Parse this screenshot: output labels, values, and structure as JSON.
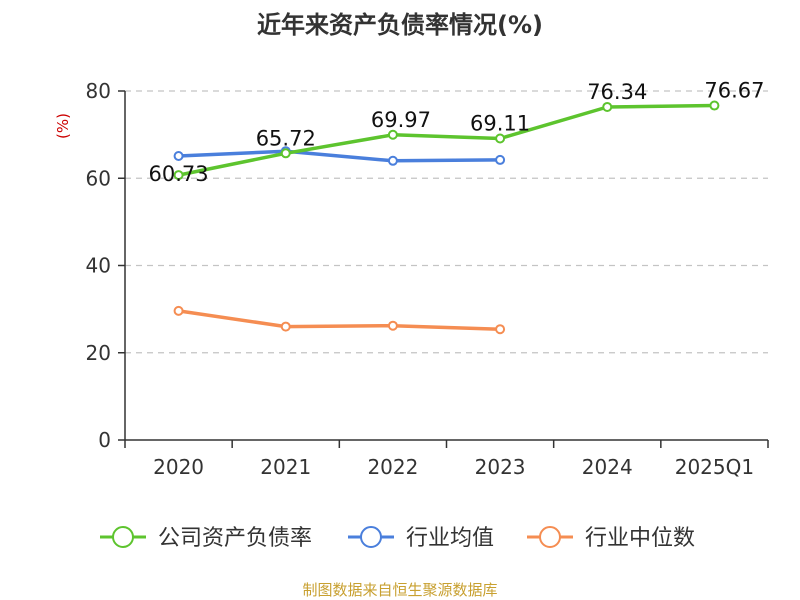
{
  "chart_data": {
    "type": "line",
    "title": "近年来资产负债率情况(%)",
    "ylabel": "(%)",
    "xlabel": "",
    "categories": [
      "2020",
      "2021",
      "2022",
      "2023",
      "2024",
      "2025Q1"
    ],
    "ylim": [
      0,
      80
    ],
    "yticks": [
      0,
      20,
      40,
      60,
      80
    ],
    "grid": true,
    "legend_position": "bottom",
    "series": [
      {
        "name": "公司资产负债率",
        "color": "#5dc42e",
        "values": [
          60.73,
          65.72,
          69.97,
          69.11,
          76.34,
          76.67
        ],
        "labels": [
          "60.73",
          "65.72",
          "69.97",
          "69.11",
          "76.34",
          "76.67"
        ]
      },
      {
        "name": "行业均值",
        "color": "#4a7fdc",
        "values": [
          65.1,
          66.2,
          64.0,
          64.2,
          null,
          null
        ]
      },
      {
        "name": "行业中位数",
        "color": "#f58d52",
        "values": [
          29.6,
          26.0,
          26.2,
          25.4,
          null,
          null
        ]
      }
    ],
    "source": "制图数据来自恒生聚源数据库"
  }
}
